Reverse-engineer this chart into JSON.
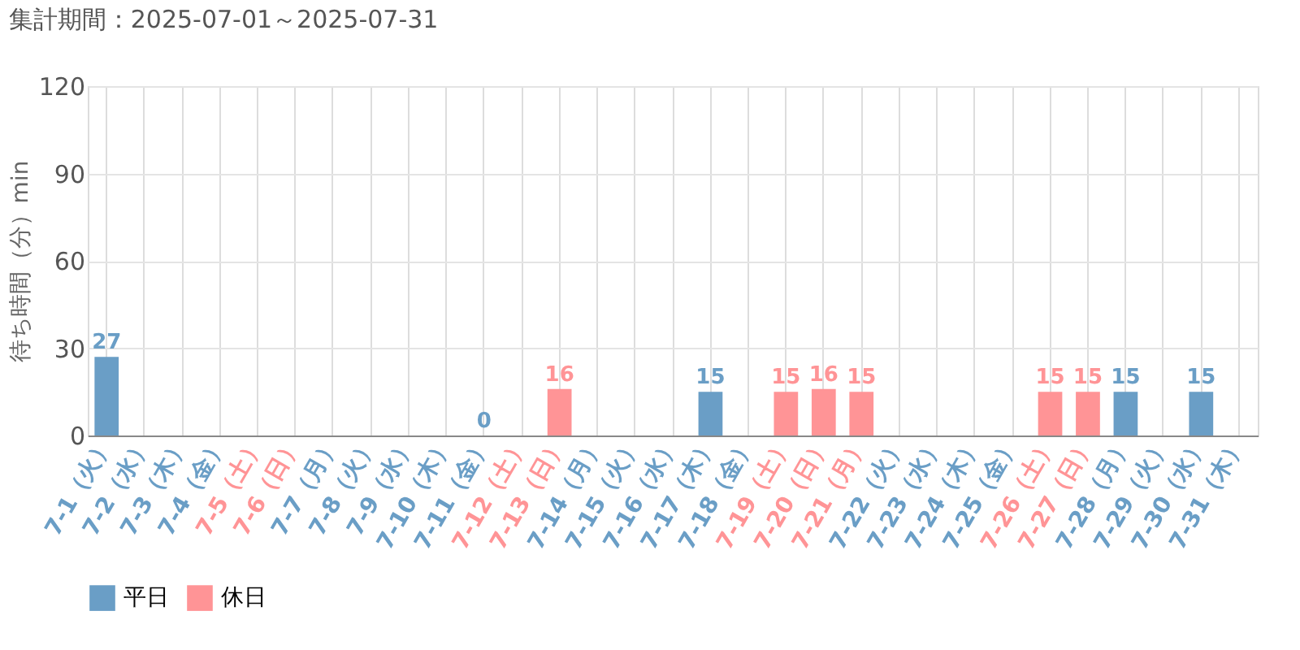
{
  "chart_data": {
    "type": "bar",
    "title": "集計期間：2025-07-01～2025-07-31",
    "ylabel": "待ち時間（分）min",
    "categories": [
      "7-1（火）",
      "7-2（水）",
      "7-3（木）",
      "7-4（金）",
      "7-5（土）",
      "7-6（日）",
      "7-7（月）",
      "7-8（火）",
      "7-9（水）",
      "7-10（木）",
      "7-11（金）",
      "7-12（土）",
      "7-13（日）",
      "7-14（月）",
      "7-15（火）",
      "7-16（水）",
      "7-17（木）",
      "7-18（金）",
      "7-19（土）",
      "7-20（日）",
      "7-21（月）",
      "7-22（火）",
      "7-23（水）",
      "7-24（木）",
      "7-25（金）",
      "7-26（土）",
      "7-27（日）",
      "7-28（月）",
      "7-29（火）",
      "7-30（水）",
      "7-31（木）"
    ],
    "colors": [
      "#6a9ec6",
      "#6a9ec6",
      "#6a9ec6",
      "#6a9ec6",
      "#ff9496",
      "#ff9496",
      "#6a9ec6",
      "#6a9ec6",
      "#6a9ec6",
      "#6a9ec6",
      "#6a9ec6",
      "#ff9496",
      "#ff9496",
      "#6a9ec6",
      "#6a9ec6",
      "#6a9ec6",
      "#6a9ec6",
      "#6a9ec6",
      "#ff9496",
      "#ff9496",
      "#ff9496",
      "#6a9ec6",
      "#6a9ec6",
      "#6a9ec6",
      "#6a9ec6",
      "#ff9496",
      "#ff9496",
      "#6a9ec6",
      "#6a9ec6",
      "#6a9ec6",
      "#6a9ec6"
    ],
    "series": [
      {
        "name": "平日",
        "color": "#6a9ec6",
        "values": [
          27,
          null,
          null,
          null,
          null,
          null,
          null,
          null,
          null,
          null,
          0,
          null,
          null,
          null,
          null,
          null,
          15,
          null,
          null,
          null,
          null,
          null,
          null,
          null,
          null,
          null,
          null,
          15,
          null,
          15,
          null
        ]
      },
      {
        "name": "休日",
        "color": "#ff9496",
        "values": [
          null,
          null,
          null,
          null,
          null,
          null,
          null,
          null,
          null,
          null,
          null,
          null,
          16,
          null,
          null,
          null,
          null,
          null,
          15,
          16,
          15,
          null,
          null,
          null,
          null,
          15,
          15,
          null,
          null,
          null,
          null
        ]
      }
    ],
    "ylim": [
      0,
      120
    ],
    "yticks": [
      0,
      30,
      60,
      90,
      120
    ],
    "grid": true,
    "legend": "bottom left",
    "data_labels": true
  }
}
